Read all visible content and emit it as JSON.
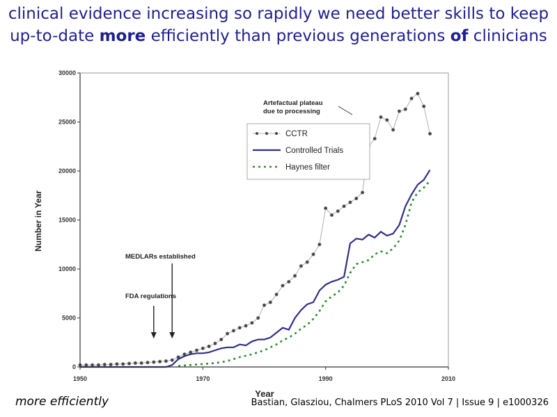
{
  "slide": {
    "title_part1": "clinical evidence increasing so rapidly we need better skills to keep up-to-date ",
    "title_bold1": "more",
    "title_part2": " efficiently than previous generations ",
    "title_bold2": "of",
    "title_part3": " clinicians",
    "bottom_left": "more efficiently",
    "citation": "Bastian, Glasziou, Chalmers PLoS 2010 Vol 7 | Issue 9 | e1000326"
  },
  "chart_data": {
    "type": "line",
    "title": "",
    "xlabel": "Year",
    "ylabel": "Number in Year",
    "xlim": [
      1950,
      2010
    ],
    "ylim": [
      0,
      30000
    ],
    "x_ticks": [
      1950,
      1970,
      1990,
      2010
    ],
    "y_ticks": [
      0,
      5000,
      10000,
      15000,
      20000,
      25000,
      30000
    ],
    "legend_position": "top-right",
    "series": [
      {
        "name": "CCTR",
        "color": "#555555",
        "style": "dotted-markers",
        "x": [
          1950,
          1951,
          1952,
          1953,
          1954,
          1955,
          1956,
          1957,
          1958,
          1959,
          1960,
          1961,
          1962,
          1963,
          1964,
          1965,
          1966,
          1967,
          1968,
          1969,
          1970,
          1971,
          1972,
          1973,
          1974,
          1975,
          1976,
          1977,
          1978,
          1979,
          1980,
          1981,
          1982,
          1983,
          1984,
          1985,
          1986,
          1987,
          1988,
          1989,
          1990,
          1991,
          1992,
          1993,
          1994,
          1995,
          1996,
          1997,
          1998,
          1999,
          2000,
          2001,
          2002,
          2003,
          2004,
          2005,
          2006,
          2007
        ],
        "y": [
          200,
          200,
          200,
          200,
          250,
          250,
          300,
          300,
          350,
          400,
          400,
          450,
          500,
          550,
          600,
          700,
          1000,
          1300,
          1500,
          1700,
          1900,
          2100,
          2400,
          2800,
          3400,
          3700,
          4000,
          4200,
          4500,
          5000,
          6300,
          6600,
          7400,
          8300,
          8700,
          9300,
          10300,
          10700,
          11500,
          12500,
          16200,
          15500,
          15900,
          16400,
          16800,
          17200,
          17800,
          22500,
          23300,
          25500,
          25200,
          24200,
          26100,
          26300,
          27400,
          27900,
          26600,
          23800
        ]
      },
      {
        "name": "Controlled Trials",
        "color": "#2e2e8a",
        "style": "solid",
        "x": [
          1950,
          1955,
          1960,
          1964,
          1965,
          1966,
          1967,
          1968,
          1969,
          1970,
          1971,
          1972,
          1973,
          1974,
          1975,
          1976,
          1977,
          1978,
          1979,
          1980,
          1981,
          1982,
          1983,
          1984,
          1985,
          1986,
          1987,
          1988,
          1989,
          1990,
          1991,
          1992,
          1993,
          1994,
          1995,
          1996,
          1997,
          1998,
          1999,
          2000,
          2001,
          2002,
          2003,
          2004,
          2005,
          2006,
          2007
        ],
        "y": [
          0,
          0,
          0,
          0,
          200,
          800,
          1100,
          1300,
          1400,
          1400,
          1500,
          1700,
          1900,
          2000,
          2000,
          2300,
          2200,
          2600,
          2800,
          2800,
          3000,
          3500,
          4000,
          3800,
          5000,
          5800,
          6400,
          6600,
          7800,
          8400,
          8700,
          8900,
          9200,
          12600,
          13100,
          13000,
          13500,
          13200,
          13800,
          13400,
          13600,
          14500,
          16400,
          17600,
          18600,
          19100,
          20100
        ]
      },
      {
        "name": "Haynes filter",
        "color": "#2e8b2e",
        "style": "dashed",
        "x": [
          1966,
          1968,
          1970,
          1972,
          1974,
          1976,
          1978,
          1980,
          1981,
          1982,
          1983,
          1984,
          1985,
          1986,
          1987,
          1988,
          1989,
          1990,
          1991,
          1992,
          1993,
          1994,
          1995,
          1996,
          1997,
          1998,
          1999,
          2000,
          2001,
          2002,
          2003,
          2004,
          2005,
          2006,
          2007
        ],
        "y": [
          100,
          200,
          300,
          400,
          600,
          1000,
          1300,
          1700,
          2000,
          2300,
          2700,
          3000,
          3400,
          3900,
          4300,
          4900,
          5700,
          6700,
          7200,
          7600,
          8300,
          9600,
          10500,
          10700,
          10900,
          11500,
          11800,
          11600,
          12100,
          12900,
          14500,
          16800,
          17800,
          18300,
          19000
        ]
      }
    ],
    "annotations": [
      {
        "text_lines": [
          "Artefactual plateau",
          "due to processing"
        ]
      },
      {
        "text_lines": [
          "MEDLARs established"
        ]
      },
      {
        "text_lines": [
          "FDA regulations"
        ]
      }
    ]
  }
}
